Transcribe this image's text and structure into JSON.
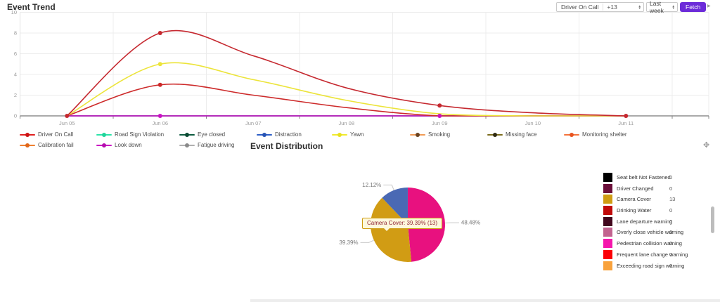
{
  "colors": {
    "accent": "#6c2bd9",
    "axis": "#555555",
    "grid": "#ececec",
    "tick_text": "#999999"
  },
  "header": {
    "trend_title": "Event Trend",
    "events_select": {
      "label": "Driver On Call",
      "badge": "+13"
    },
    "range_select": {
      "value": "Last week"
    },
    "fetch_label": "Fetch"
  },
  "trend_legend": {
    "rows": [
      [
        {
          "label": "Driver On Call",
          "line": "#e02020",
          "dot": "#cc1414"
        },
        {
          "label": "Road Sign Violation",
          "line": "#2ee3a9",
          "dot": "#1fd49a"
        },
        {
          "label": "Eye closed",
          "line": "#0e5c40",
          "dot": "#0b4a33"
        },
        {
          "label": "Distraction",
          "line": "#2e5fc7",
          "dot": "#2753b4"
        },
        {
          "label": "Yawn",
          "line": "#f0ea2e",
          "dot": "#e8e020"
        },
        {
          "label": "Smoking",
          "line": "#f09b57",
          "dot": "#6b4320"
        },
        {
          "label": "Missing face",
          "line": "#7c6d1e",
          "dot": "#2f2a10"
        },
        {
          "label": "Monitoring shelter",
          "line": "#f4733c",
          "dot": "#e85420"
        }
      ],
      [
        {
          "label": "Calibration fail",
          "line": "#ef8030",
          "dot": "#e0661a"
        },
        {
          "label": "Look down",
          "line": "#ca12c4",
          "dot": "#b40eae"
        },
        {
          "label": "Fatigue driving",
          "line": "#b0b0b0",
          "dot": "#8a8a8a"
        }
      ]
    ]
  },
  "distribution": {
    "title": "Event Distribution",
    "tooltip": "Camera Cover: 39.39% (13)",
    "legend": [
      {
        "label": "Seat belt Not Fastened",
        "value": "0",
        "color": "#000000"
      },
      {
        "label": "Driver Changed",
        "value": "0",
        "color": "#6b0f3a"
      },
      {
        "label": "Camera Cover",
        "value": "13",
        "color": "#cf9c12"
      },
      {
        "label": "Drinking Water",
        "value": "0",
        "color": "#c00a0a"
      },
      {
        "label": "Lane departure warning",
        "value": "0",
        "color": "#42081e"
      },
      {
        "label": "Overly close vehicle warning",
        "value": "0",
        "color": "#c2638f"
      },
      {
        "label": "Pedestrian collision warning",
        "value": "0",
        "color": "#f516ac"
      },
      {
        "label": "Frequent lane change warning",
        "value": "0",
        "color": "#fb0007"
      },
      {
        "label": "Exceeding road sign warning",
        "value": "0",
        "color": "#f9a23c"
      }
    ]
  },
  "chart_data": [
    {
      "type": "line",
      "title": "Event Trend",
      "x": [
        "Jun 05",
        "Jun 06",
        "Jun 07",
        "Jun 08",
        "Jun 09",
        "Jun 10",
        "Jun 11"
      ],
      "ylim": [
        0,
        10
      ],
      "yticks": [
        0,
        2,
        4,
        6,
        8,
        10
      ],
      "grid": true,
      "legend_position": "bottom",
      "series": [
        {
          "name": "Road Sign Violation",
          "color": "#2ee3a9",
          "values": [
            0,
            0,
            0,
            0,
            0,
            0,
            0
          ],
          "markers": []
        },
        {
          "name": "Eye closed",
          "color": "#0e5c40",
          "values": [
            0,
            0,
            0,
            0,
            0,
            0,
            0
          ],
          "markers": []
        },
        {
          "name": "Smoking",
          "color": "#f09b57",
          "values": [
            0,
            0,
            0,
            0,
            0,
            0,
            0
          ],
          "markers": []
        },
        {
          "name": "Missing face",
          "color": "#7c6d1e",
          "values": [
            0,
            0,
            0,
            0,
            0,
            0,
            0
          ],
          "markers": []
        },
        {
          "name": "Calibration fail",
          "color": "#ef8030",
          "values": [
            0,
            0,
            0,
            0,
            0,
            0,
            0
          ],
          "markers": []
        },
        {
          "name": "Fatigue driving",
          "color": "#b0b0b0",
          "values": [
            0,
            0,
            0,
            0,
            0,
            0,
            0
          ],
          "markers": []
        },
        {
          "name": "Distraction",
          "color": "#2e5fc7",
          "values": [
            0,
            0,
            0,
            0,
            0,
            0,
            0
          ],
          "markers": []
        },
        {
          "name": "Look down",
          "color": "#ca12c4",
          "values": [
            0,
            0,
            0,
            0,
            0,
            0,
            0
          ],
          "markers": [
            1,
            4
          ]
        },
        {
          "name": "Monitoring shelter",
          "color": "#cd2a2a",
          "values": [
            0,
            3,
            2,
            0.8,
            0,
            0,
            0
          ],
          "markers": [
            1
          ]
        },
        {
          "name": "Yawn",
          "color": "#ece43a",
          "values": [
            0,
            5,
            3.5,
            1.5,
            0.2,
            0,
            0
          ],
          "markers": [
            1
          ]
        },
        {
          "name": "Driver On Call",
          "color": "#c5282f",
          "values": [
            0,
            8,
            5.8,
            2.7,
            1,
            0.3,
            0
          ],
          "markers": [
            0,
            1,
            4,
            6
          ]
        }
      ]
    },
    {
      "type": "pie",
      "title": "Event Distribution",
      "slices": [
        {
          "name": "",
          "label": "48.48%",
          "pct": 48.48,
          "color": "#e8117f"
        },
        {
          "name": "Camera Cover",
          "label": "39.39%",
          "pct": 39.39,
          "color": "#d19c14",
          "count": 13
        },
        {
          "name": "",
          "label": "12.12%",
          "pct": 12.12,
          "color": "#4a69b4"
        }
      ],
      "tooltip": "Camera Cover: 39.39% (13)",
      "legend_position": "right"
    }
  ]
}
